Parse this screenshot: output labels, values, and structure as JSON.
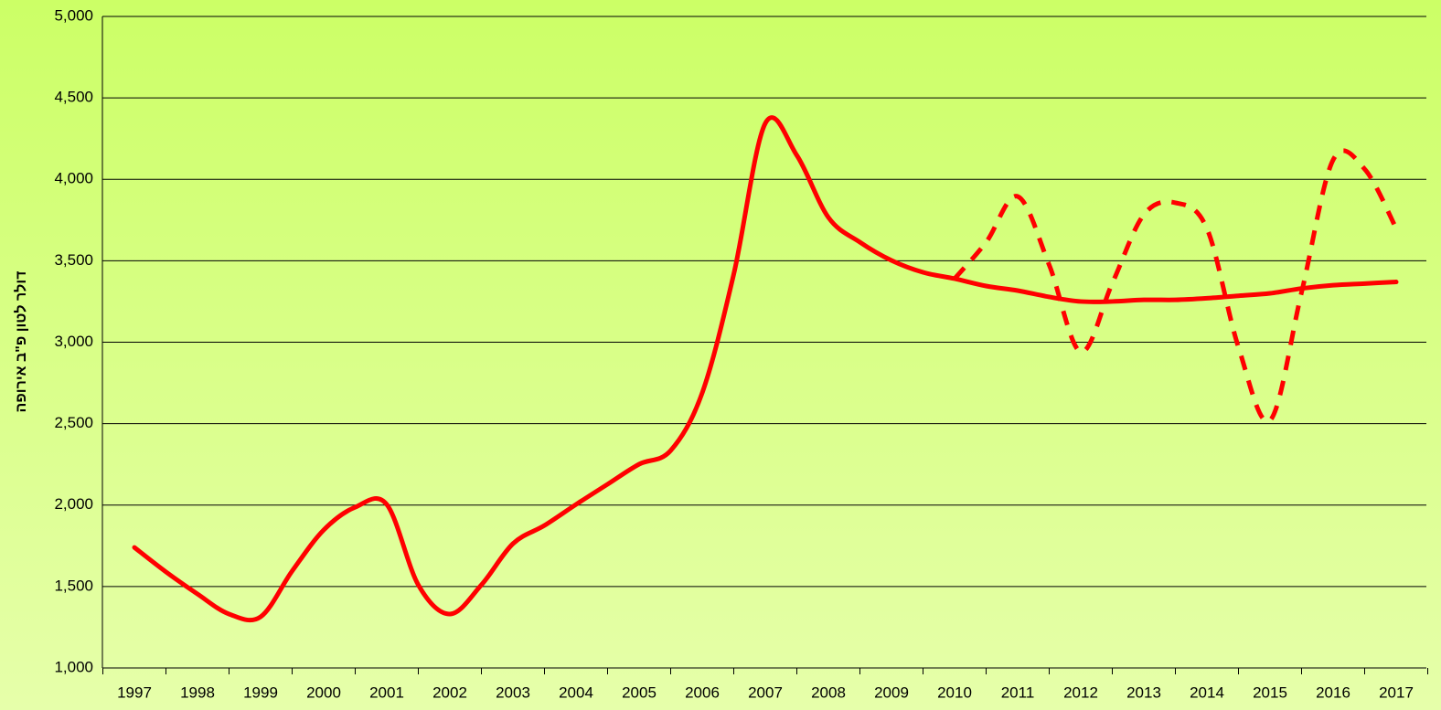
{
  "chart_data": {
    "type": "line",
    "y_label": "דולר לטון פ\"ב אירופה",
    "categories": [
      "1997",
      null,
      "1998",
      null,
      "1999",
      null,
      "2000",
      null,
      "2001",
      null,
      "2002",
      null,
      "2003",
      null,
      "2004",
      null,
      "2005",
      null,
      "2006",
      null,
      "2007",
      null,
      "2008",
      null,
      "2009",
      null,
      "2010",
      null,
      "2011",
      null,
      "2012",
      null,
      "2013",
      null,
      "2014",
      null,
      "2015",
      null,
      "2016",
      null,
      "2017"
    ],
    "series": [
      {
        "color": "#ff0000",
        "dashed": false,
        "values": [
          1740,
          1590,
          1454,
          1331,
          1314,
          1595,
          1847,
          1987,
          2004,
          1510,
          1331,
          1510,
          1763,
          1875,
          2004,
          2128,
          2251,
          2335,
          2689,
          3418,
          4344,
          4147,
          3766,
          3614,
          3502,
          3429,
          3390,
          3345,
          3317,
          3278,
          3250,
          3250,
          3260,
          3260,
          3270,
          3285,
          3300,
          3330,
          3350,
          3360,
          3370
        ]
      },
      {
        "color": "#ff0000",
        "dashed": true,
        "values": [
          null,
          null,
          null,
          null,
          null,
          null,
          null,
          null,
          null,
          null,
          null,
          null,
          null,
          null,
          null,
          null,
          null,
          null,
          null,
          null,
          null,
          null,
          null,
          null,
          null,
          null,
          3390,
          3614,
          3895,
          3474,
          2941,
          3362,
          3783,
          3856,
          3698,
          2969,
          2520,
          3306,
          4119,
          4063,
          3698
        ]
      }
    ],
    "ylim": [
      1000,
      5000
    ],
    "yticks": [
      {
        "value": 1000,
        "label": "1,000"
      },
      {
        "value": 1500,
        "label": "1,500"
      },
      {
        "value": 2000,
        "label": "2,000"
      },
      {
        "value": 2500,
        "label": "2,500"
      },
      {
        "value": 3000,
        "label": "3,000"
      },
      {
        "value": 3500,
        "label": "3,500"
      },
      {
        "value": 4000,
        "label": "4,000"
      },
      {
        "value": 4500,
        "label": "4,500"
      },
      {
        "value": 5000,
        "label": "5,000"
      }
    ],
    "grid": true
  }
}
